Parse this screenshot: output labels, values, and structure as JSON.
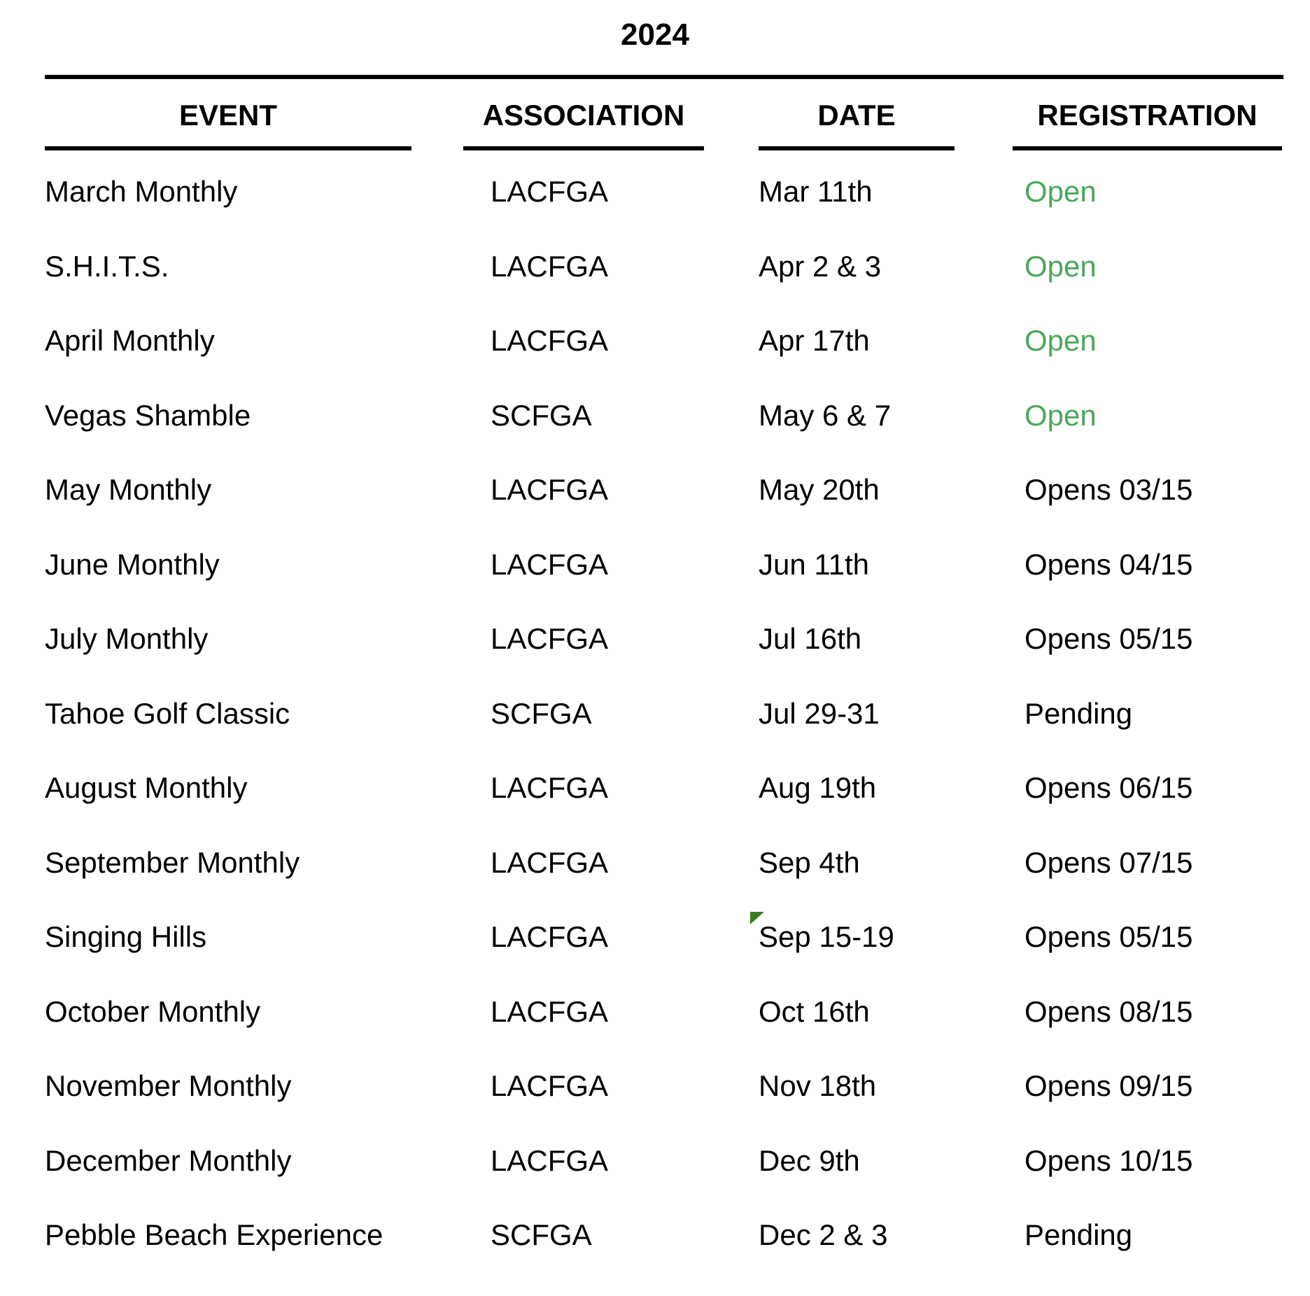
{
  "title": "2024",
  "colors": {
    "text": "#000000",
    "open_green": "#4BA85B",
    "note_marker_green": "#397D22"
  },
  "table": {
    "columns": {
      "event": "EVENT",
      "association": "ASSOCIATION",
      "date": "DATE",
      "registration": "REGISTRATION"
    },
    "rows": [
      {
        "event": "March Monthly",
        "association": "LACFGA",
        "date": "Mar 11th",
        "registration": "Open",
        "status": "open",
        "note": false
      },
      {
        "event": "S.H.I.T.S.",
        "association": "LACFGA",
        "date": "Apr 2 & 3",
        "registration": "Open",
        "status": "open",
        "note": false
      },
      {
        "event": "April Monthly",
        "association": "LACFGA",
        "date": "Apr 17th",
        "registration": "Open",
        "status": "open",
        "note": false
      },
      {
        "event": "Vegas Shamble",
        "association": "SCFGA",
        "date": "May 6 & 7",
        "registration": "Open",
        "status": "open",
        "note": false
      },
      {
        "event": "May Monthly",
        "association": "LACFGA",
        "date": "May 20th",
        "registration": "Opens 03/15",
        "status": "upcoming",
        "note": false
      },
      {
        "event": "June Monthly",
        "association": "LACFGA",
        "date": "Jun 11th",
        "registration": "Opens 04/15",
        "status": "upcoming",
        "note": false
      },
      {
        "event": "July Monthly",
        "association": "LACFGA",
        "date": "Jul 16th",
        "registration": "Opens 05/15",
        "status": "upcoming",
        "note": false
      },
      {
        "event": "Tahoe Golf Classic",
        "association": "SCFGA",
        "date": "Jul 29-31",
        "registration": "Pending",
        "status": "pending",
        "note": false
      },
      {
        "event": "August Monthly",
        "association": "LACFGA",
        "date": "Aug 19th",
        "registration": "Opens 06/15",
        "status": "upcoming",
        "note": false
      },
      {
        "event": "September Monthly",
        "association": "LACFGA",
        "date": "Sep 4th",
        "registration": "Opens 07/15",
        "status": "upcoming",
        "note": false
      },
      {
        "event": "Singing Hills",
        "association": "LACFGA",
        "date": "Sep 15-19",
        "registration": "Opens 05/15",
        "status": "upcoming",
        "note": true
      },
      {
        "event": "October Monthly",
        "association": "LACFGA",
        "date": "Oct 16th",
        "registration": "Opens 08/15",
        "status": "upcoming",
        "note": false
      },
      {
        "event": "November Monthly",
        "association": "LACFGA",
        "date": "Nov 18th",
        "registration": "Opens 09/15",
        "status": "upcoming",
        "note": false
      },
      {
        "event": "December Monthly",
        "association": "LACFGA",
        "date": "Dec 9th",
        "registration": "Opens 10/15",
        "status": "upcoming",
        "note": false
      },
      {
        "event": "Pebble Beach Experience",
        "association": "SCFGA",
        "date": "Dec 2 & 3",
        "registration": "Pending",
        "status": "pending",
        "note": false
      }
    ]
  }
}
